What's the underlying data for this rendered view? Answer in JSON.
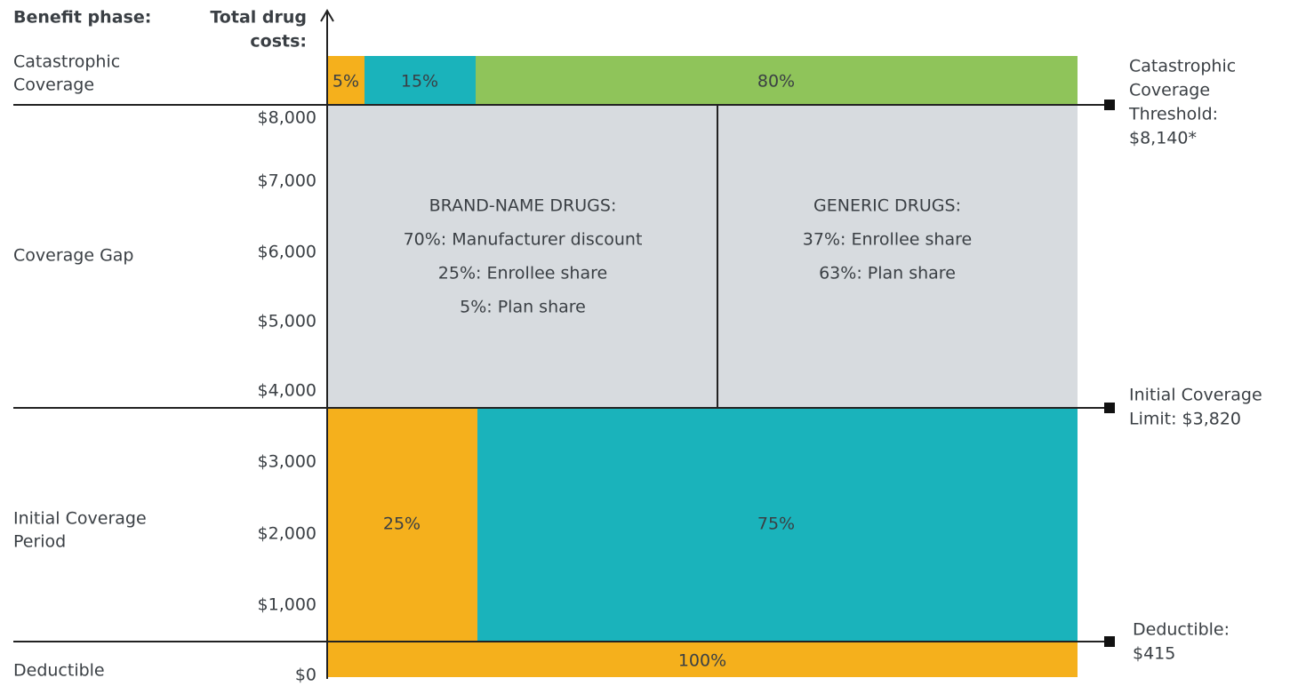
{
  "header": {
    "benefit_phase": "Benefit phase:",
    "total_drug_costs": [
      "Total drug",
      "costs:"
    ]
  },
  "phases": [
    {
      "label": [
        "Catastrophic",
        "Coverage"
      ]
    },
    {
      "label": [
        "Coverage Gap"
      ]
    },
    {
      "label": [
        "Initial Coverage",
        "Period"
      ]
    },
    {
      "label": [
        "Deductible"
      ]
    }
  ],
  "yticks": [
    "$8,000",
    "$7,000",
    "$6,000",
    "$5,000",
    "$4,000",
    "$3,000",
    "$2,000",
    "$1,000",
    "$0"
  ],
  "catastrophic": [
    "5%",
    "15%",
    "80%"
  ],
  "brand_name": {
    "title": "BRAND-NAME DRUGS:",
    "lines": [
      "70%: Manufacturer discount",
      "25%: Enrollee share",
      "5%: Plan share"
    ]
  },
  "generic": {
    "title": "GENERIC DRUGS:",
    "lines": [
      "37%: Enrollee share",
      "63%: Plan share"
    ]
  },
  "initial": [
    "25%",
    "75%"
  ],
  "deductible": "100%",
  "thresholds": [
    {
      "label": [
        "Catastrophic",
        "Coverage",
        "Threshold:",
        "$8,140*"
      ]
    },
    {
      "label": [
        "Initial Coverage",
        "Limit: $3,820"
      ]
    },
    {
      "label": [
        "Deductible:",
        "$415"
      ]
    }
  ]
}
